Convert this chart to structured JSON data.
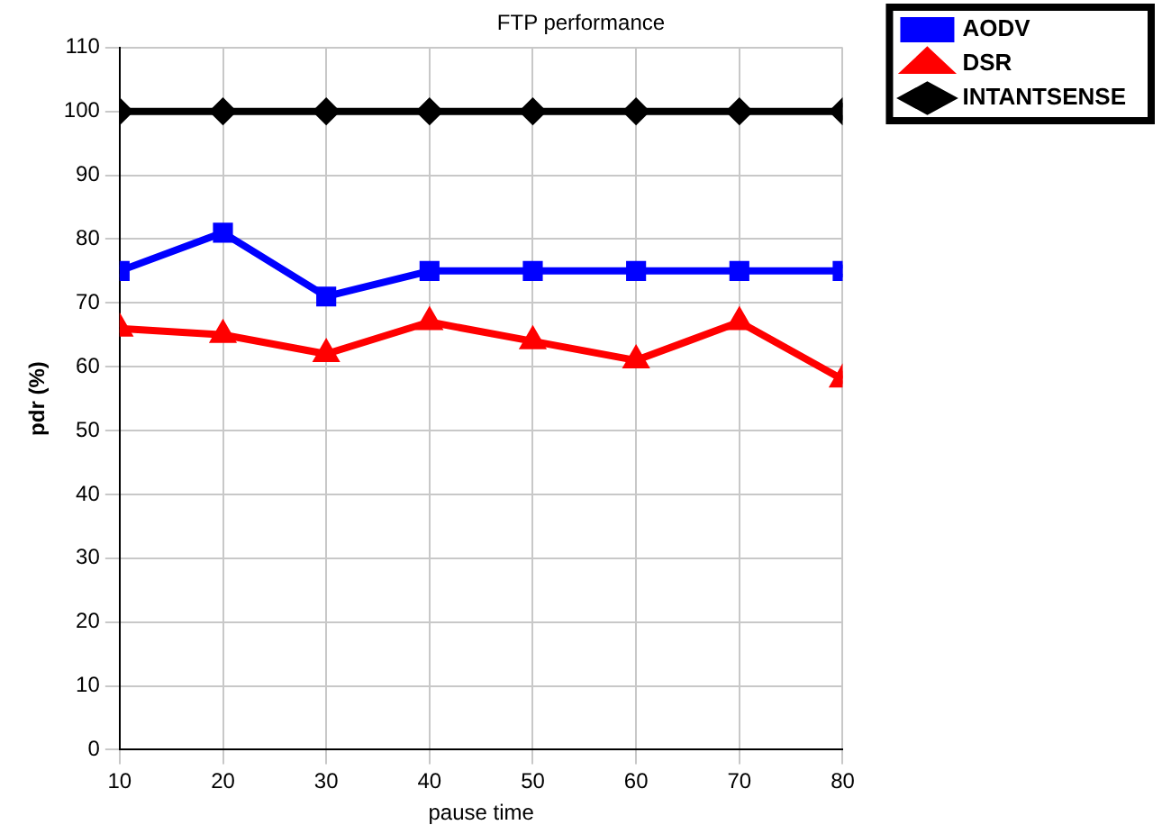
{
  "chart_data": {
    "type": "line",
    "title": "FTP performance",
    "xlabel": "pause time",
    "ylabel": "pdr (%)",
    "x": [
      10,
      20,
      30,
      40,
      50,
      60,
      70,
      80
    ],
    "series": [
      {
        "name": "AODV",
        "color": "#0000ff",
        "marker": "square",
        "values": [
          75,
          81,
          71,
          75,
          75,
          75,
          75,
          75
        ]
      },
      {
        "name": "DSR",
        "color": "#ff0000",
        "marker": "triangle",
        "values": [
          66,
          65,
          62,
          67,
          64,
          61,
          67,
          58
        ]
      },
      {
        "name": "INTANTSENSE",
        "color": "#000000",
        "marker": "diamond",
        "values": [
          100,
          100,
          100,
          100,
          100,
          100,
          100,
          100
        ]
      }
    ],
    "xlim": [
      10,
      80
    ],
    "xticks": [
      10,
      20,
      30,
      40,
      50,
      60,
      70,
      80
    ],
    "ylim": [
      0,
      110
    ],
    "yticks": [
      0,
      10,
      20,
      30,
      40,
      50,
      60,
      70,
      80,
      90,
      100,
      110
    ],
    "grid": true,
    "legend": "top right",
    "line_style": "solid"
  }
}
